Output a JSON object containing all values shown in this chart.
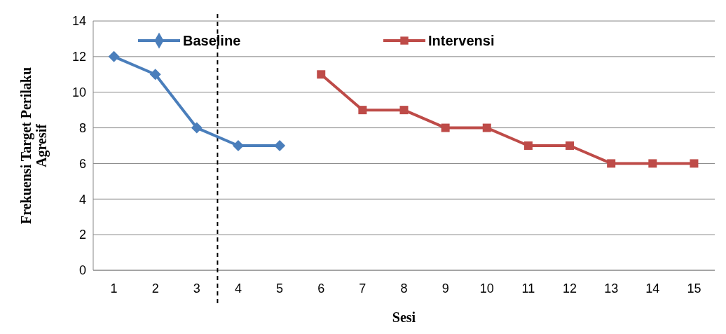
{
  "chart_data": {
    "type": "line",
    "xlabel": "Sesi",
    "ylabel": "Frekuensi Target Perilaku Agresif",
    "xlim": [
      0.5,
      15.5
    ],
    "xticks": [
      1,
      2,
      3,
      4,
      5,
      6,
      7,
      8,
      9,
      10,
      11,
      12,
      13,
      14,
      15
    ],
    "ylim": [
      0,
      14
    ],
    "yticks": [
      0,
      2,
      4,
      6,
      8,
      10,
      12,
      14
    ],
    "grid": "y",
    "legend": "top",
    "line_style": "solid",
    "series": [
      {
        "name": "Baseline",
        "color": "#4a7ebb",
        "marker": "diamond",
        "x": [
          1,
          2,
          3,
          4,
          5
        ],
        "values": [
          12,
          11,
          8,
          7,
          7
        ]
      },
      {
        "name": "Intervensi",
        "color": "#be4b48",
        "marker": "square",
        "x": [
          6,
          7,
          8,
          9,
          10,
          11,
          12,
          13,
          14,
          15
        ],
        "values": [
          11,
          9,
          9,
          8,
          8,
          7,
          7,
          6,
          6,
          6
        ]
      }
    ],
    "ref_lines": [
      {
        "axis": "x",
        "value": 3.5,
        "color": "#000000",
        "line_style": "dashed"
      }
    ]
  }
}
